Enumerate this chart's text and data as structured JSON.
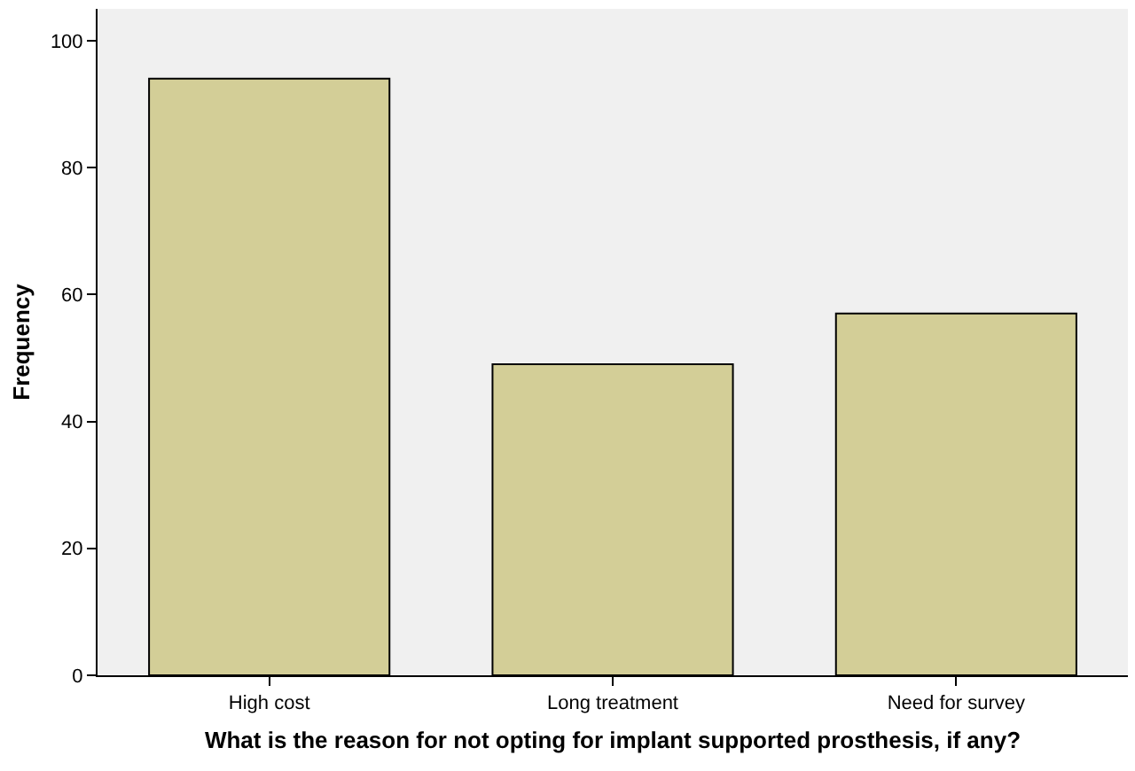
{
  "chart_data": {
    "type": "bar",
    "xlabel": "What is the reason for not opting for implant supported prosthesis, if any?",
    "ylabel": "Frequency",
    "categories": [
      "High cost",
      "Long treatment",
      "Need for survey"
    ],
    "values": [
      94,
      49,
      57
    ],
    "color": "#d3ce97",
    "ylim": [
      0,
      105
    ],
    "yticks": [
      0,
      20,
      40,
      60,
      80,
      100
    ],
    "grid": false
  }
}
